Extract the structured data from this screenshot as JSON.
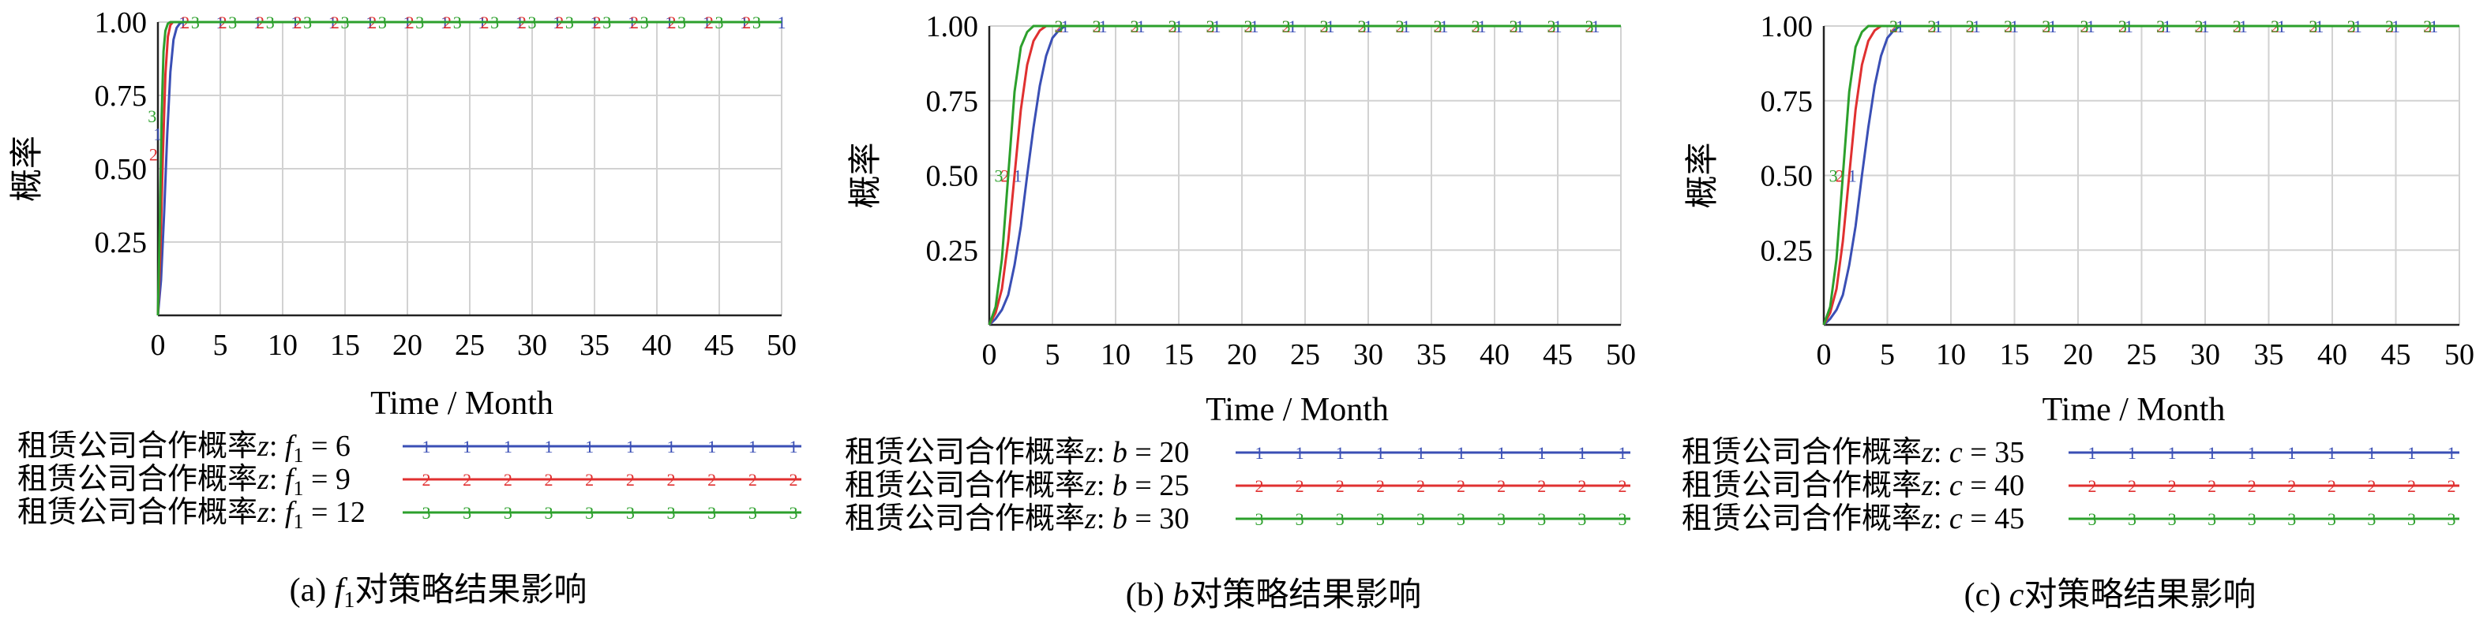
{
  "chart_data": [
    {
      "type": "line",
      "xlabel": "Time / Month",
      "ylabel": "概率",
      "xlim": [
        0,
        50
      ],
      "ylim": [
        0,
        1
      ],
      "xticks": [
        0,
        5,
        10,
        15,
        20,
        25,
        30,
        35,
        40,
        45,
        50
      ],
      "yticks": [
        0.25,
        0.5,
        0.75,
        1.0
      ],
      "ytick_labels": [
        "0.25",
        "0.50",
        "0.75",
        "1.00"
      ],
      "grid": true,
      "legend_position": "bottom",
      "caption": {
        "prefix": "(a) ",
        "var": "f",
        "sub": "1",
        "suffix": "对策略结果影响"
      },
      "series": [
        {
          "legend_text": "租赁公司合作概率",
          "legend_var": "z",
          "param_var": "f",
          "param_sub": "1",
          "param_value": "6",
          "color": "#3a4fb5",
          "marker": "1",
          "x": [
            0,
            0.25,
            0.5,
            0.75,
            1.0,
            1.25,
            1.5,
            1.75,
            2.0,
            2.5,
            3,
            50
          ],
          "y": [
            0,
            0.12,
            0.35,
            0.62,
            0.83,
            0.94,
            0.98,
            0.995,
            1.0,
            1.0,
            1.0,
            1.0
          ]
        },
        {
          "legend_text": "租赁公司合作概率",
          "legend_var": "z",
          "param_var": "f",
          "param_sub": "1",
          "param_value": "9",
          "color": "#e03030",
          "marker": "2",
          "x": [
            0,
            0.2,
            0.4,
            0.6,
            0.8,
            1.0,
            1.2,
            1.5,
            2.0,
            50
          ],
          "y": [
            0,
            0.22,
            0.55,
            0.82,
            0.95,
            0.99,
            1.0,
            1.0,
            1.0,
            1.0
          ]
        },
        {
          "legend_text": "租赁公司合作概率",
          "legend_var": "z",
          "param_var": "f",
          "param_sub": "1",
          "param_value": "12",
          "color": "#2ca02c",
          "marker": "3",
          "x": [
            0,
            0.15,
            0.3,
            0.45,
            0.6,
            0.8,
            1.0,
            1.3,
            2.0,
            50
          ],
          "y": [
            0,
            0.3,
            0.68,
            0.9,
            0.97,
            0.995,
            1.0,
            1.0,
            1.0,
            1.0
          ]
        }
      ]
    },
    {
      "type": "line",
      "xlabel": "Time / Month",
      "ylabel": "概率",
      "xlim": [
        0,
        50
      ],
      "ylim": [
        0,
        1
      ],
      "xticks": [
        0,
        5,
        10,
        15,
        20,
        25,
        30,
        35,
        40,
        45,
        50
      ],
      "yticks": [
        0.25,
        0.5,
        0.75,
        1.0
      ],
      "ytick_labels": [
        "0.25",
        "0.50",
        "0.75",
        "1.00"
      ],
      "grid": true,
      "legend_position": "bottom",
      "caption": {
        "prefix": "(b) ",
        "var": "b",
        "sub": "",
        "suffix": "对策略结果影响"
      },
      "series": [
        {
          "legend_text": "租赁公司合作概率",
          "legend_var": "z",
          "param_var": "b",
          "param_sub": "",
          "param_value": "20",
          "color": "#3a4fb5",
          "marker": "1",
          "x": [
            0,
            0.5,
            1,
            1.5,
            2,
            2.5,
            3,
            3.5,
            4,
            4.5,
            5,
            5.5,
            6,
            7,
            50
          ],
          "y": [
            0,
            0.02,
            0.05,
            0.1,
            0.2,
            0.33,
            0.5,
            0.66,
            0.8,
            0.9,
            0.96,
            0.985,
            1.0,
            1.0,
            1.0
          ]
        },
        {
          "legend_text": "租赁公司合作概率",
          "legend_var": "z",
          "param_var": "b",
          "param_sub": "",
          "param_value": "25",
          "color": "#e03030",
          "marker": "2",
          "x": [
            0,
            0.5,
            1,
            1.5,
            2,
            2.5,
            3,
            3.5,
            4,
            4.5,
            5,
            6,
            50
          ],
          "y": [
            0,
            0.04,
            0.12,
            0.28,
            0.5,
            0.72,
            0.87,
            0.95,
            0.985,
            1.0,
            1.0,
            1.0,
            1.0
          ]
        },
        {
          "legend_text": "租赁公司合作概率",
          "legend_var": "z",
          "param_var": "b",
          "param_sub": "",
          "param_value": "30",
          "color": "#2ca02c",
          "marker": "3",
          "x": [
            0,
            0.5,
            1,
            1.5,
            2,
            2.5,
            3,
            3.5,
            4,
            5,
            50
          ],
          "y": [
            0,
            0.06,
            0.22,
            0.5,
            0.78,
            0.93,
            0.98,
            1.0,
            1.0,
            1.0,
            1.0
          ]
        }
      ]
    },
    {
      "type": "line",
      "xlabel": "Time / Month",
      "ylabel": "概率",
      "xlim": [
        0,
        50
      ],
      "ylim": [
        0,
        1
      ],
      "xticks": [
        0,
        5,
        10,
        15,
        20,
        25,
        30,
        35,
        40,
        45,
        50
      ],
      "yticks": [
        0.25,
        0.5,
        0.75,
        1.0
      ],
      "ytick_labels": [
        "0.25",
        "0.50",
        "0.75",
        "1.00"
      ],
      "grid": true,
      "legend_position": "bottom",
      "caption": {
        "prefix": "(c) ",
        "var": "c",
        "sub": "",
        "suffix": "对策略结果影响"
      },
      "series": [
        {
          "legend_text": "租赁公司合作概率",
          "legend_var": "z",
          "param_var": "c",
          "param_sub": "",
          "param_value": "35",
          "color": "#3a4fb5",
          "marker": "1",
          "x": [
            0,
            0.5,
            1,
            1.5,
            2,
            2.5,
            3,
            3.5,
            4,
            4.5,
            5,
            5.5,
            6,
            7,
            50
          ],
          "y": [
            0,
            0.02,
            0.05,
            0.1,
            0.2,
            0.33,
            0.5,
            0.66,
            0.8,
            0.9,
            0.96,
            0.985,
            1.0,
            1.0,
            1.0
          ]
        },
        {
          "legend_text": "租赁公司合作概率",
          "legend_var": "z",
          "param_var": "c",
          "param_sub": "",
          "param_value": "40",
          "color": "#e03030",
          "marker": "2",
          "x": [
            0,
            0.5,
            1,
            1.5,
            2,
            2.5,
            3,
            3.5,
            4,
            4.5,
            5,
            6,
            50
          ],
          "y": [
            0,
            0.04,
            0.12,
            0.28,
            0.5,
            0.72,
            0.87,
            0.95,
            0.985,
            1.0,
            1.0,
            1.0,
            1.0
          ]
        },
        {
          "legend_text": "租赁公司合作概率",
          "legend_var": "z",
          "param_var": "c",
          "param_sub": "",
          "param_value": "45",
          "color": "#2ca02c",
          "marker": "3",
          "x": [
            0,
            0.5,
            1,
            1.5,
            2,
            2.5,
            3,
            3.5,
            4,
            5,
            50
          ],
          "y": [
            0,
            0.06,
            0.22,
            0.5,
            0.78,
            0.93,
            0.98,
            1.0,
            1.0,
            1.0,
            1.0
          ]
        }
      ]
    }
  ]
}
